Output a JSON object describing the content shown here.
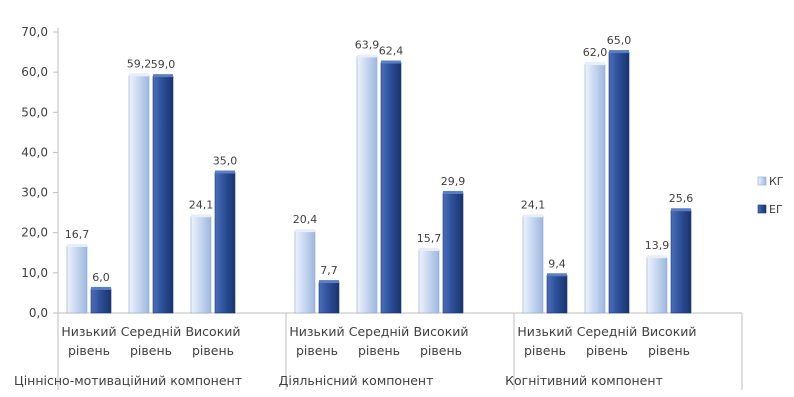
{
  "chart_data": {
    "type": "bar",
    "title": "",
    "xlabel": "",
    "ylabel": "",
    "ylim": [
      0,
      70
    ],
    "yticks": [
      "0,0",
      "10,0",
      "20,0",
      "30,0",
      "40,0",
      "50,0",
      "60,0",
      "70,0"
    ],
    "grid": false,
    "legend_position": "right",
    "groups": [
      {
        "label": "Ціннісно-мотиваційний компонент",
        "categories": [
          {
            "line1": "Низький",
            "line2": "рівень"
          },
          {
            "line1": "Середній",
            "line2": "рівень"
          },
          {
            "line1": "Високий",
            "line2": "рівень"
          }
        ]
      },
      {
        "label": "Діяльнісний компонент",
        "categories": [
          {
            "line1": "Низький",
            "line2": "рівень"
          },
          {
            "line1": "Середній",
            "line2": "рівень"
          },
          {
            "line1": "Високий",
            "line2": "рівень"
          }
        ]
      },
      {
        "label": "Когнітивний компонент",
        "categories": [
          {
            "line1": "Низький",
            "line2": "рівень"
          },
          {
            "line1": "Середній",
            "line2": "рівень"
          },
          {
            "line1": "Високий",
            "line2": "рівень"
          }
        ]
      }
    ],
    "series": [
      {
        "name": "КГ",
        "color": "#c5d6ef",
        "values": [
          16.7,
          59.2,
          24.1,
          20.4,
          63.9,
          15.7,
          24.1,
          62.0,
          13.9
        ],
        "labels": [
          "16,7",
          "59,2",
          "24,1",
          "20,4",
          "63,9",
          "15,7",
          "24,1",
          "62,0",
          "13,9"
        ]
      },
      {
        "name": "ЕГ",
        "color": "#2a4d96",
        "values": [
          6.0,
          59.0,
          35.0,
          7.7,
          62.4,
          29.9,
          9.4,
          65.0,
          25.6
        ],
        "labels": [
          "6,0",
          "59,0",
          "35,0",
          "7,7",
          "62,4",
          "29,9",
          "9,4",
          "65,0",
          "25,6"
        ]
      }
    ]
  }
}
